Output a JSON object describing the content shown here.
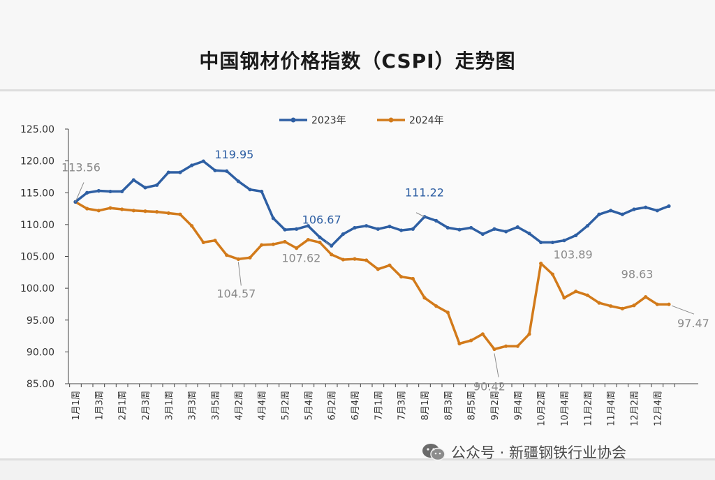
{
  "title": "中国钢材价格指数（CSPI）走势图",
  "watermark": "公众号 · 新疆钢铁行业协会",
  "colors": {
    "series_2023": "#2e5fa3",
    "series_2024": "#d27a1a",
    "axis": "#333333",
    "label_gray": "#8a8a8a"
  },
  "chart_data": {
    "type": "line",
    "title": "中国钢材价格指数（CSPI）走势图",
    "xlabel": "",
    "ylabel": "",
    "ylim": [
      85,
      125
    ],
    "yticks": [
      "85.00",
      "90.00",
      "95.00",
      "100.00",
      "105.00",
      "110.00",
      "115.00",
      "120.00",
      "125.00"
    ],
    "xtick_labels": [
      "1月1周",
      "1月3周",
      "2月1周",
      "2月3周",
      "3月1周",
      "3月3周",
      "3月5周",
      "4月2周",
      "4月4周",
      "5月2周",
      "5月4周",
      "6月2周",
      "6月4周",
      "7月1周",
      "7月3周",
      "8月1周",
      "8月3周",
      "8月5周",
      "9月2周",
      "9月4周",
      "10月2周",
      "10月4周",
      "11月2周",
      "11月4周",
      "12月2周",
      "12月4周"
    ],
    "legend": "top-center",
    "grid": false,
    "series": [
      {
        "name": "2023年",
        "color": "#2e5fa3",
        "values": [
          113.56,
          115.0,
          115.3,
          115.2,
          115.2,
          117.0,
          115.8,
          116.2,
          118.2,
          118.2,
          119.3,
          119.95,
          118.5,
          118.4,
          116.8,
          115.5,
          115.2,
          111.0,
          109.2,
          109.3,
          109.8,
          108.0,
          106.67,
          108.5,
          109.5,
          109.8,
          109.3,
          109.7,
          109.1,
          109.3,
          111.22,
          110.6,
          109.5,
          109.2,
          109.5,
          108.5,
          109.3,
          108.9,
          109.6,
          108.6,
          107.2,
          107.2,
          107.5,
          108.3,
          109.8,
          111.6,
          112.2,
          111.6,
          112.4,
          112.7,
          112.2,
          112.9
        ]
      },
      {
        "name": "2024年",
        "color": "#d27a1a",
        "values": [
          113.56,
          112.5,
          112.2,
          112.6,
          112.4,
          112.2,
          112.1,
          112.0,
          111.8,
          111.6,
          109.8,
          107.2,
          107.5,
          105.2,
          104.57,
          104.8,
          106.8,
          106.9,
          107.3,
          106.3,
          107.62,
          107.2,
          105.3,
          104.5,
          104.6,
          104.4,
          103.0,
          103.6,
          101.8,
          101.5,
          98.5,
          97.2,
          96.2,
          91.3,
          91.8,
          92.8,
          90.42,
          90.9,
          90.9,
          92.8,
          103.89,
          102.2,
          98.5,
          99.5,
          98.9,
          97.7,
          97.2,
          96.8,
          97.3,
          98.63,
          97.47,
          97.47
        ]
      }
    ],
    "annotations": [
      {
        "text": "113.56",
        "series": "2023年",
        "index": 0,
        "color": "gray"
      },
      {
        "text": "119.95",
        "series": "2023年",
        "index": 11,
        "color": "blue"
      },
      {
        "text": "106.67",
        "series": "2023年",
        "index": 22,
        "color": "blue"
      },
      {
        "text": "111.22",
        "series": "2023年",
        "index": 30,
        "color": "blue"
      },
      {
        "text": "104.57",
        "series": "2024年",
        "index": 14,
        "color": "gray"
      },
      {
        "text": "107.62",
        "series": "2024年",
        "index": 20,
        "color": "gray"
      },
      {
        "text": "90.42",
        "series": "2024年",
        "index": 36,
        "color": "gray"
      },
      {
        "text": "103.89",
        "series": "2024年",
        "index": 40,
        "color": "gray"
      },
      {
        "text": "98.63",
        "series": "2024年",
        "index": 49,
        "color": "gray"
      },
      {
        "text": "97.47",
        "series": "2024年",
        "index": 51,
        "color": "gray"
      }
    ]
  }
}
